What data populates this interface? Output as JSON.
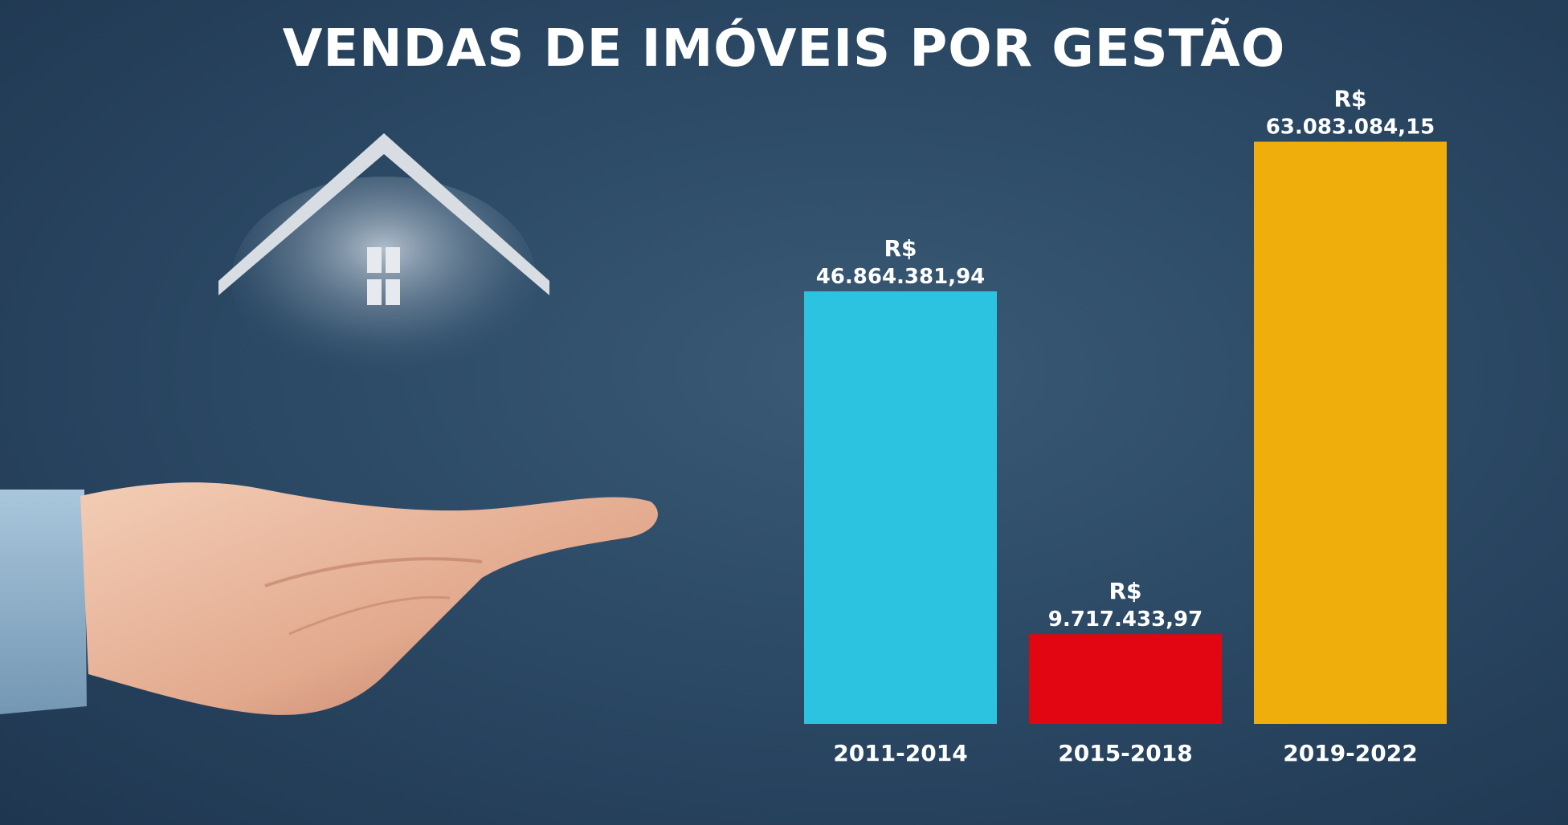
{
  "title": "VENDAS DE IMÓVEIS POR GESTÃO",
  "chart_data": {
    "type": "bar",
    "title": "VENDAS DE IMÓVEIS POR GESTÃO",
    "categories": [
      "2011-2014",
      "2015-2018",
      "2019-2022"
    ],
    "values": [
      46864381.94,
      9717433.97,
      63083084.15
    ],
    "value_labels": [
      {
        "currency": "R$",
        "amount": "46.864.381,94"
      },
      {
        "currency": "R$",
        "amount": "9.717.433,97"
      },
      {
        "currency": "R$",
        "amount": "63.083.084,15"
      }
    ],
    "colors": [
      "#2bc3df",
      "#e20613",
      "#efae0b"
    ],
    "ylim": [
      0,
      68000000
    ],
    "grid": false,
    "xlabel": "",
    "ylabel": ""
  },
  "illustration": {
    "house_icon": "house-roof-icon",
    "hand_icon": "open-hand-icon"
  }
}
